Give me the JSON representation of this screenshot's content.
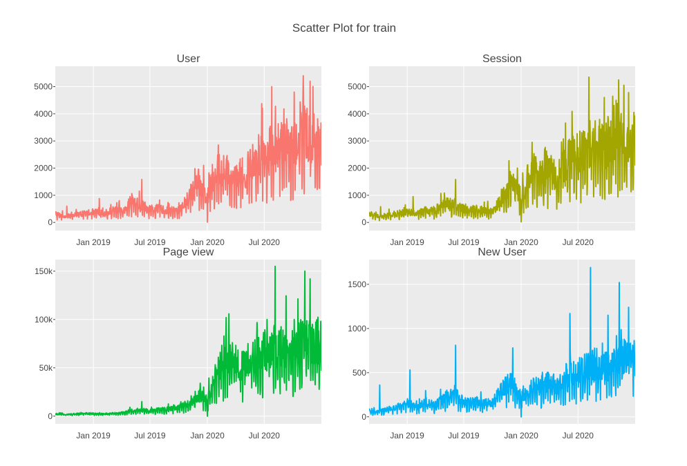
{
  "chart_data": {
    "type": "line",
    "title": "Scatter Plot for train",
    "x_range": [
      "2018-09-01",
      "2020-12-31"
    ],
    "x_ticks": [
      {
        "date": "2019-01-01",
        "label": "Jan 2019"
      },
      {
        "date": "2019-07-01",
        "label": "Jul 2019"
      },
      {
        "date": "2020-01-01",
        "label": "Jan 2020"
      },
      {
        "date": "2020-07-01",
        "label": "Jul 2020"
      }
    ],
    "grid": true,
    "legend": "none",
    "panels": [
      {
        "title": "User",
        "color": "#f8766d",
        "ylim": [
          -300,
          5750
        ],
        "y_ticks": [
          {
            "value": 0,
            "label": "0"
          },
          {
            "value": 1000,
            "label": "1000"
          },
          {
            "value": 2000,
            "label": "2000"
          },
          {
            "value": 3000,
            "label": "3000"
          },
          {
            "value": 4000,
            "label": "4000"
          },
          {
            "value": 5000,
            "label": "5000"
          }
        ],
        "x": [
          "2018-09-01",
          "2018-10-01",
          "2018-11-01",
          "2018-12-01",
          "2019-01-01",
          "2019-02-01",
          "2019-03-01",
          "2019-04-01",
          "2019-05-01",
          "2019-06-01",
          "2019-07-01",
          "2019-08-01",
          "2019-09-01",
          "2019-10-01",
          "2019-11-01",
          "2019-12-01",
          "2020-01-01",
          "2020-02-01",
          "2020-03-01",
          "2020-04-01",
          "2020-05-01",
          "2020-06-01",
          "2020-07-01",
          "2020-08-01",
          "2020-09-01",
          "2020-10-01",
          "2020-11-01",
          "2020-12-01"
        ],
        "values": [
          300,
          200,
          250,
          300,
          350,
          300,
          400,
          400,
          700,
          600,
          450,
          450,
          400,
          400,
          800,
          1400,
          800,
          1800,
          1700,
          1700,
          1600,
          2200,
          2300,
          2500,
          2600,
          2500,
          3200,
          2800
        ],
        "peaks": [
          {
            "x": "2018-10-08",
            "y": 600
          },
          {
            "x": "2019-01-20",
            "y": 880
          },
          {
            "x": "2019-06-05",
            "y": 1580
          },
          {
            "x": "2019-12-20",
            "y": 2100
          },
          {
            "x": "2020-01-01",
            "y": 10
          },
          {
            "x": "2020-02-05",
            "y": 2850
          },
          {
            "x": "2020-05-10",
            "y": 2600
          },
          {
            "x": "2020-07-25",
            "y": 5000
          },
          {
            "x": "2020-10-05",
            "y": 4800
          },
          {
            "x": "2020-11-03",
            "y": 5400
          },
          {
            "x": "2020-11-25",
            "y": 5200
          },
          {
            "x": "2020-12-31",
            "y": 2100
          }
        ]
      },
      {
        "title": "Session",
        "color": "#a3a500",
        "ylim": [
          -300,
          5750
        ],
        "y_ticks": [
          {
            "value": 0,
            "label": "0"
          },
          {
            "value": 1000,
            "label": "1000"
          },
          {
            "value": 2000,
            "label": "2000"
          },
          {
            "value": 3000,
            "label": "3000"
          },
          {
            "value": 4000,
            "label": "4000"
          },
          {
            "value": 5000,
            "label": "5000"
          }
        ],
        "x": [
          "2018-09-01",
          "2018-10-01",
          "2018-11-01",
          "2018-12-01",
          "2019-01-01",
          "2019-02-01",
          "2019-03-01",
          "2019-04-01",
          "2019-05-01",
          "2019-06-01",
          "2019-07-01",
          "2019-08-01",
          "2019-09-01",
          "2019-10-01",
          "2019-11-01",
          "2019-12-01",
          "2020-01-01",
          "2020-02-01",
          "2020-03-01",
          "2020-04-01",
          "2020-05-01",
          "2020-06-01",
          "2020-07-01",
          "2020-08-01",
          "2020-09-01",
          "2020-10-01",
          "2020-11-01",
          "2020-12-01"
        ],
        "values": [
          300,
          200,
          250,
          300,
          350,
          300,
          400,
          400,
          700,
          600,
          450,
          450,
          400,
          400,
          800,
          1400,
          800,
          1800,
          1600,
          1700,
          1600,
          2100,
          2300,
          2600,
          2700,
          2500,
          3100,
          2800
        ],
        "peaks": [
          {
            "x": "2018-10-08",
            "y": 580
          },
          {
            "x": "2019-01-20",
            "y": 950
          },
          {
            "x": "2019-06-05",
            "y": 1580
          },
          {
            "x": "2019-12-20",
            "y": 2000
          },
          {
            "x": "2020-01-01",
            "y": 20
          },
          {
            "x": "2020-02-05",
            "y": 2950
          },
          {
            "x": "2020-05-10",
            "y": 2500
          },
          {
            "x": "2020-08-05",
            "y": 5350
          },
          {
            "x": "2020-10-05",
            "y": 3900
          },
          {
            "x": "2020-11-08",
            "y": 5250
          },
          {
            "x": "2020-11-25",
            "y": 5050
          },
          {
            "x": "2020-12-31",
            "y": 2100
          }
        ]
      },
      {
        "title": "Page view",
        "color": "#00ba38",
        "ylim": [
          -8000,
          162000
        ],
        "y_ticks": [
          {
            "value": 0,
            "label": "0"
          },
          {
            "value": 50000,
            "label": "50k"
          },
          {
            "value": 100000,
            "label": "100k"
          },
          {
            "value": 150000,
            "label": "150k"
          }
        ],
        "x": [
          "2018-09-01",
          "2018-10-01",
          "2018-11-01",
          "2018-12-01",
          "2019-01-01",
          "2019-02-01",
          "2019-03-01",
          "2019-04-01",
          "2019-05-01",
          "2019-06-01",
          "2019-07-01",
          "2019-08-01",
          "2019-09-01",
          "2019-10-01",
          "2019-11-01",
          "2019-12-01",
          "2020-01-01",
          "2020-02-01",
          "2020-03-01",
          "2020-04-01",
          "2020-05-01",
          "2020-06-01",
          "2020-07-01",
          "2020-08-01",
          "2020-09-01",
          "2020-10-01",
          "2020-11-01",
          "2020-12-01"
        ],
        "values": [
          2000,
          1500,
          2000,
          2500,
          2500,
          2000,
          2500,
          3000,
          5000,
          6000,
          5000,
          6000,
          7000,
          8000,
          12000,
          20000,
          15000,
          45000,
          55000,
          50000,
          45000,
          55000,
          60000,
          65000,
          65000,
          60000,
          70000,
          70000
        ],
        "peaks": [
          {
            "x": "2019-06-05",
            "y": 15000
          },
          {
            "x": "2019-12-20",
            "y": 30000
          },
          {
            "x": "2020-01-01",
            "y": 0
          },
          {
            "x": "2020-03-01",
            "y": 102000
          },
          {
            "x": "2020-05-10",
            "y": 75000
          },
          {
            "x": "2020-07-10",
            "y": 100000
          },
          {
            "x": "2020-08-05",
            "y": 155000
          },
          {
            "x": "2020-10-05",
            "y": 100000
          },
          {
            "x": "2020-11-08",
            "y": 150000
          },
          {
            "x": "2020-11-25",
            "y": 142000
          },
          {
            "x": "2020-12-31",
            "y": 47000
          }
        ]
      },
      {
        "title": "New User",
        "color": "#00b0f6",
        "ylim": [
          -80,
          1780
        ],
        "y_ticks": [
          {
            "value": 0,
            "label": "0"
          },
          {
            "value": 500,
            "label": "500"
          },
          {
            "value": 1000,
            "label": "1000"
          },
          {
            "value": 1500,
            "label": "1500"
          }
        ],
        "x": [
          "2018-09-01",
          "2018-10-01",
          "2018-11-01",
          "2018-12-01",
          "2019-01-01",
          "2019-02-01",
          "2019-03-01",
          "2019-04-01",
          "2019-05-01",
          "2019-06-01",
          "2019-07-01",
          "2019-08-01",
          "2019-09-01",
          "2019-10-01",
          "2019-11-01",
          "2019-12-01",
          "2020-01-01",
          "2020-02-01",
          "2020-03-01",
          "2020-04-01",
          "2020-05-01",
          "2020-06-01",
          "2020-07-01",
          "2020-08-01",
          "2020-09-01",
          "2020-10-01",
          "2020-11-01",
          "2020-12-01"
        ],
        "values": [
          60,
          50,
          80,
          100,
          150,
          100,
          150,
          120,
          200,
          250,
          150,
          150,
          150,
          150,
          300,
          350,
          200,
          300,
          320,
          350,
          320,
          450,
          450,
          500,
          550,
          500,
          650,
          600
        ],
        "peaks": [
          {
            "x": "2018-10-05",
            "y": 360
          },
          {
            "x": "2019-01-10",
            "y": 530
          },
          {
            "x": "2019-06-05",
            "y": 810
          },
          {
            "x": "2019-12-05",
            "y": 780
          },
          {
            "x": "2020-01-01",
            "y": 0
          },
          {
            "x": "2020-06-05",
            "y": 1170
          },
          {
            "x": "2020-08-10",
            "y": 1690
          },
          {
            "x": "2020-10-05",
            "y": 1150
          },
          {
            "x": "2020-11-10",
            "y": 1520
          },
          {
            "x": "2020-12-10",
            "y": 1240
          },
          {
            "x": "2020-12-31",
            "y": 460
          }
        ]
      }
    ]
  }
}
